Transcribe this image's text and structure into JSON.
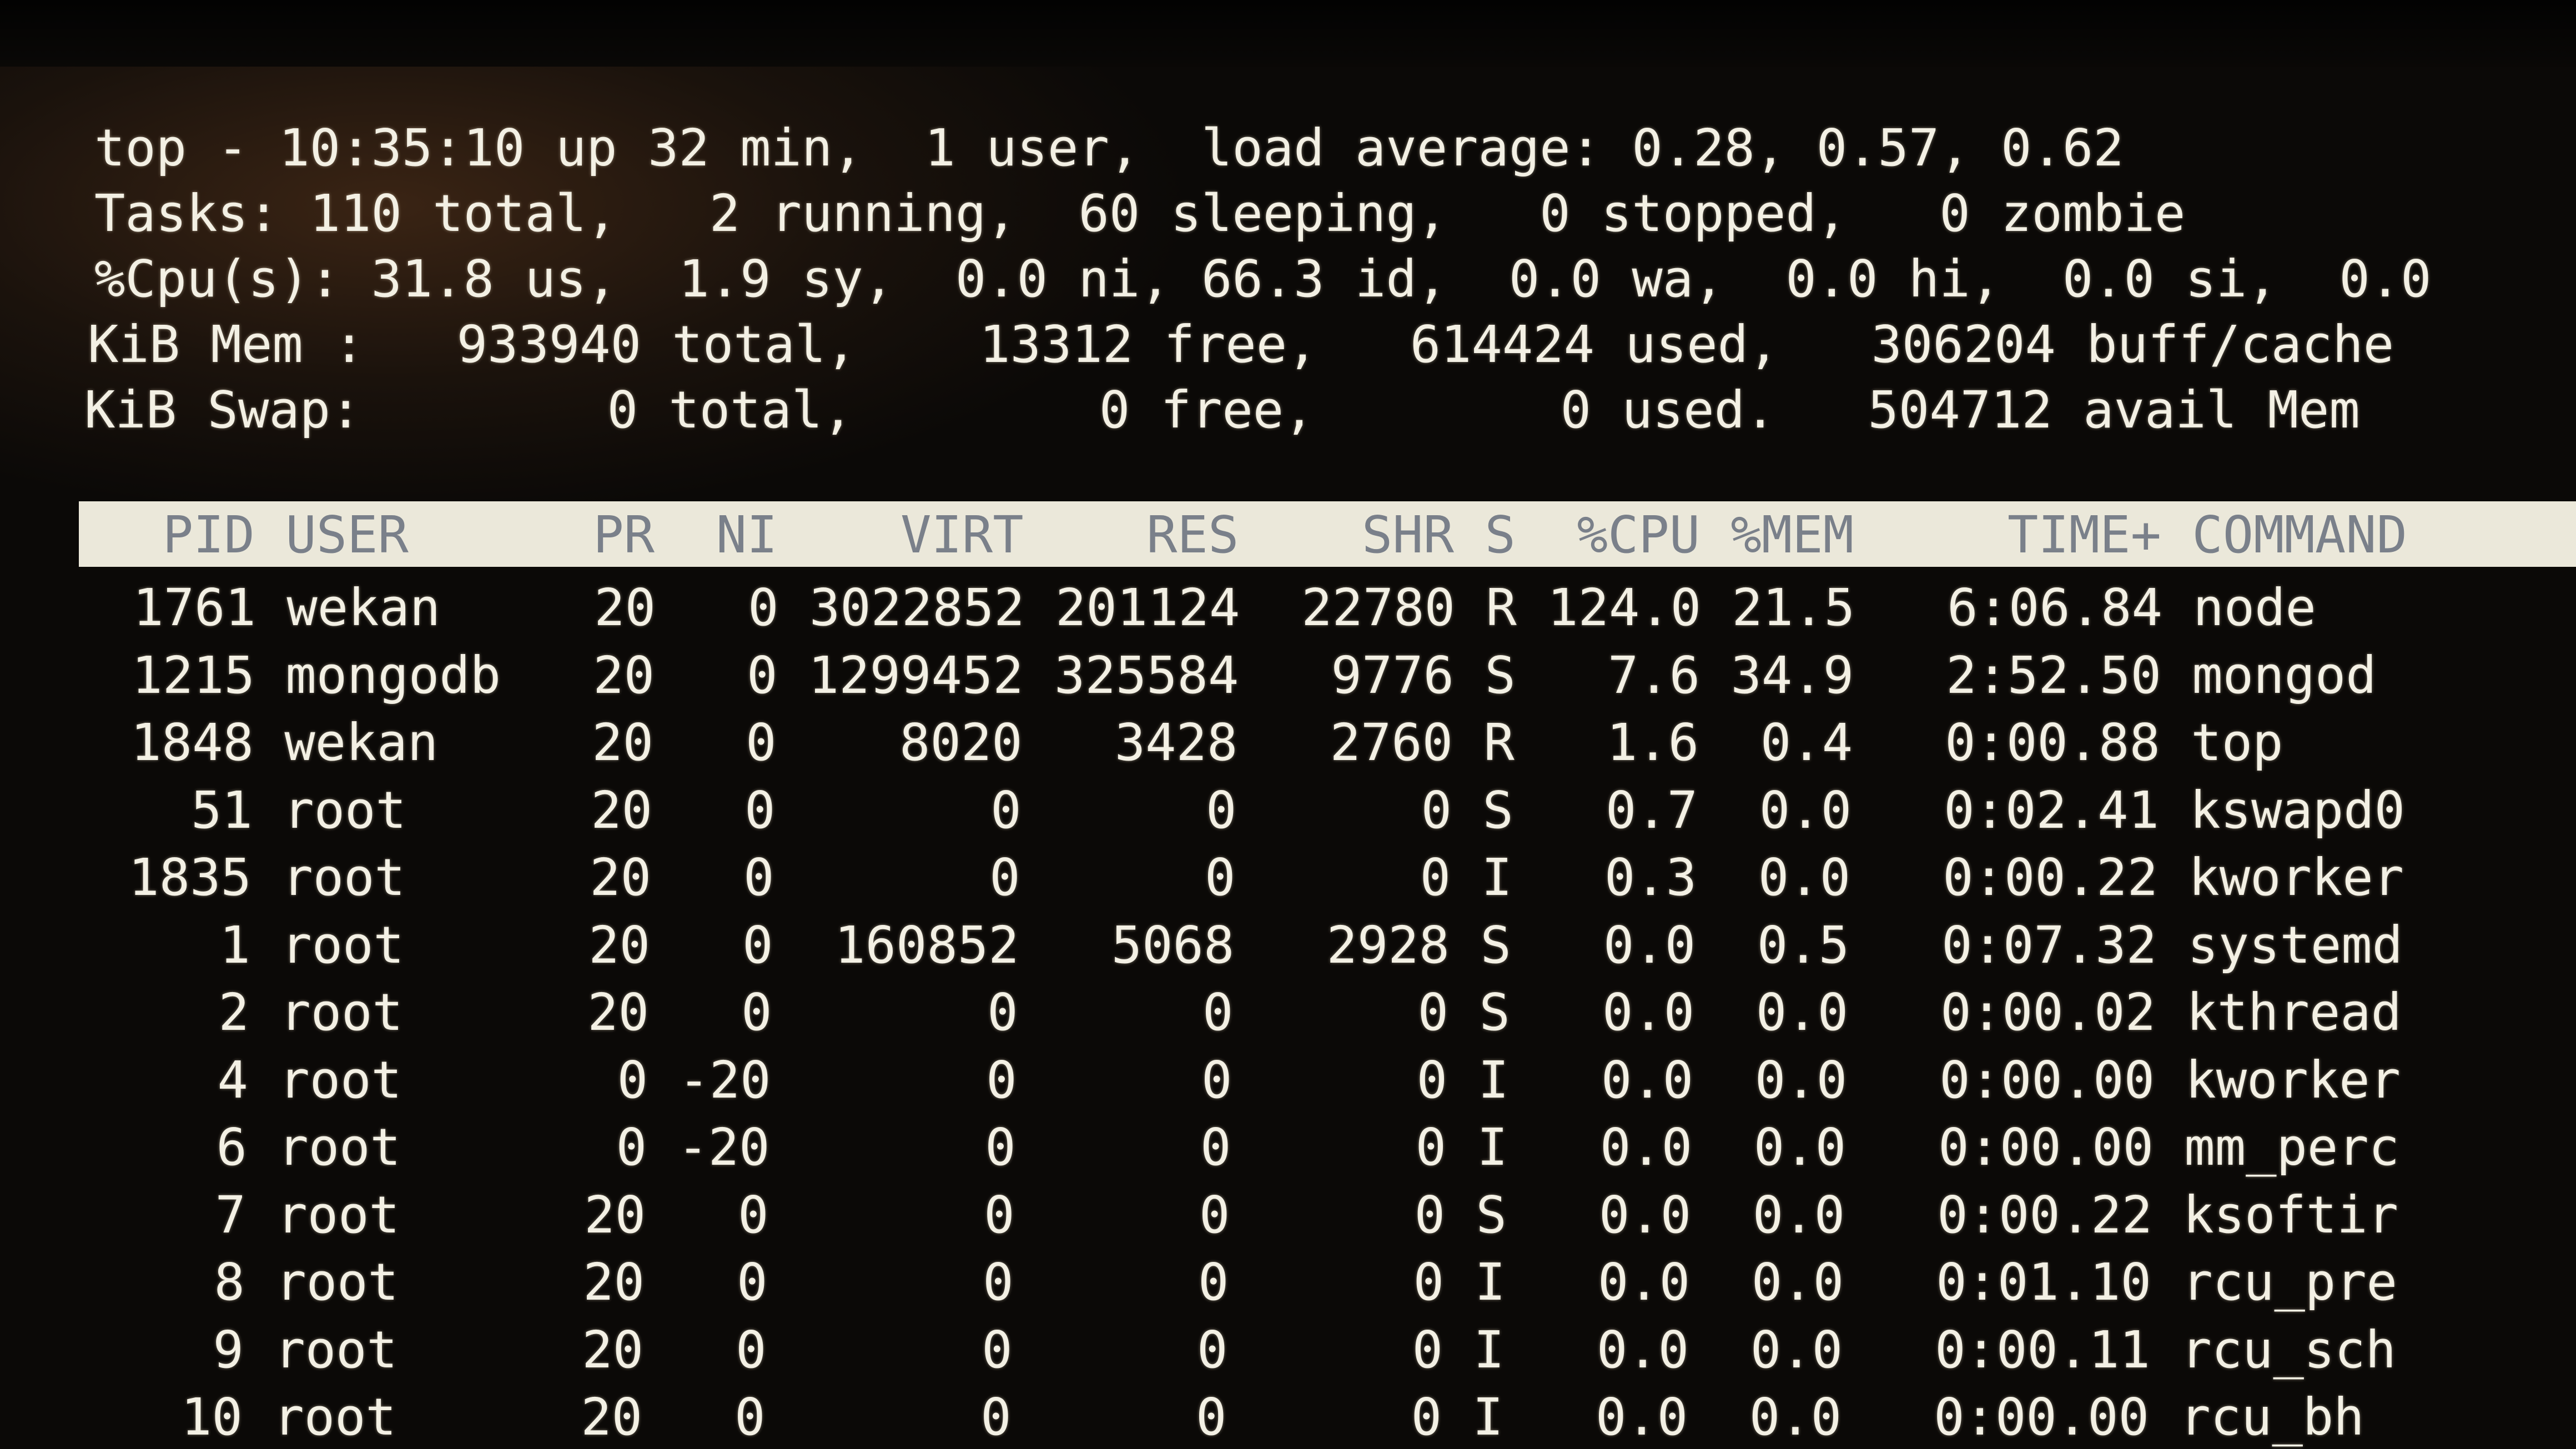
{
  "summary": {
    "line1": "top - 10:35:10 up 32 min,  1 user,  load average: 0.28, 0.57, 0.62",
    "line2": "Tasks: 110 total,   2 running,  60 sleeping,   0 stopped,   0 zombie",
    "line3": "%Cpu(s): 31.8 us,  1.9 sy,  0.0 ni, 66.3 id,  0.0 wa,  0.0 hi,  0.0 si,  0.0",
    "line4": "KiB Mem :   933940 total,    13312 free,   614424 used,   306204 buff/cache",
    "line5": "KiB Swap:        0 total,        0 free,        0 used.   504712 avail Mem"
  },
  "columns": [
    "PID",
    "USER",
    "PR",
    "NI",
    "VIRT",
    "RES",
    "SHR",
    "S",
    "%CPU",
    "%MEM",
    "TIME+",
    "COMMAND"
  ],
  "processes": [
    [
      "1761",
      "wekan",
      "20",
      "0",
      "3022852",
      "201124",
      "22780",
      "R",
      "124.0",
      "21.5",
      "6:06.84",
      "node"
    ],
    [
      "1215",
      "mongodb",
      "20",
      "0",
      "1299452",
      "325584",
      "9776",
      "S",
      "7.6",
      "34.9",
      "2:52.50",
      "mongod"
    ],
    [
      "1848",
      "wekan",
      "20",
      "0",
      "8020",
      "3428",
      "2760",
      "R",
      "1.6",
      "0.4",
      "0:00.88",
      "top"
    ],
    [
      "51",
      "root",
      "20",
      "0",
      "0",
      "0",
      "0",
      "S",
      "0.7",
      "0.0",
      "0:02.41",
      "kswapd0"
    ],
    [
      "1835",
      "root",
      "20",
      "0",
      "0",
      "0",
      "0",
      "I",
      "0.3",
      "0.0",
      "0:00.22",
      "kworker"
    ],
    [
      "1",
      "root",
      "20",
      "0",
      "160852",
      "5068",
      "2928",
      "S",
      "0.0",
      "0.5",
      "0:07.32",
      "systemd"
    ],
    [
      "2",
      "root",
      "20",
      "0",
      "0",
      "0",
      "0",
      "S",
      "0.0",
      "0.0",
      "0:00.02",
      "kthread"
    ],
    [
      "4",
      "root",
      "0",
      "-20",
      "0",
      "0",
      "0",
      "I",
      "0.0",
      "0.0",
      "0:00.00",
      "kworker"
    ],
    [
      "6",
      "root",
      "0",
      "-20",
      "0",
      "0",
      "0",
      "I",
      "0.0",
      "0.0",
      "0:00.00",
      "mm_perc"
    ],
    [
      "7",
      "root",
      "20",
      "0",
      "0",
      "0",
      "0",
      "S",
      "0.0",
      "0.0",
      "0:00.22",
      "ksoftir"
    ],
    [
      "8",
      "root",
      "20",
      "0",
      "0",
      "0",
      "0",
      "I",
      "0.0",
      "0.0",
      "0:01.10",
      "rcu_pre"
    ],
    [
      "9",
      "root",
      "20",
      "0",
      "0",
      "0",
      "0",
      "I",
      "0.0",
      "0.0",
      "0:00.11",
      "rcu_sch"
    ],
    [
      "10",
      "root",
      "20",
      "0",
      "0",
      "0",
      "0",
      "I",
      "0.0",
      "0.0",
      "0:00.00",
      "rcu_bh"
    ]
  ],
  "colors": {
    "text": "#f3f0e4",
    "background": "#0b0907",
    "header_band": "#ebe8da",
    "header_text": "#7a808a"
  }
}
